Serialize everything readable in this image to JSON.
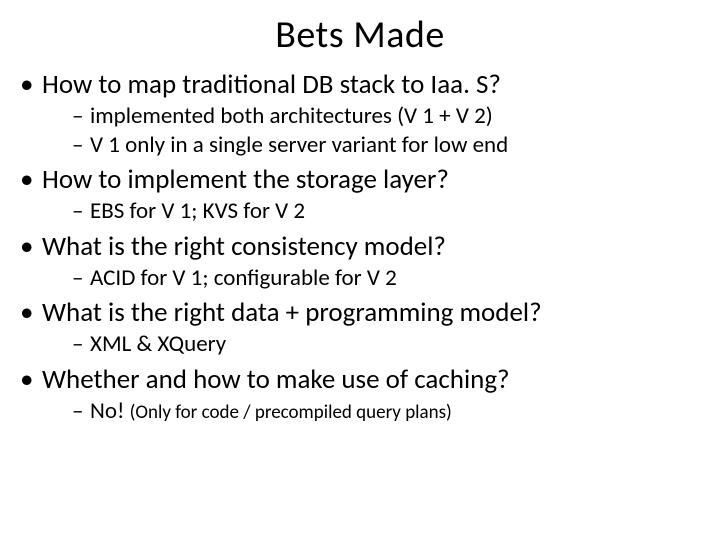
{
  "title": "Bets Made",
  "bullets": [
    {
      "text": "How to map traditional DB stack to Iaa. S?",
      "sub": [
        "implemented both architectures (V 1 + V 2)",
        "V 1 only in a single server variant for low end"
      ]
    },
    {
      "text": "How to implement the storage layer?",
      "sub": [
        "EBS for V 1;  KVS for V 2"
      ]
    },
    {
      "text": "What is the right consistency model?",
      "sub": [
        "ACID for V 1; configurable for V 2"
      ]
    },
    {
      "text": "What is the right data + programming model?",
      "sub": [
        "XML & XQuery"
      ]
    },
    {
      "text": "Whether and how to make use of caching?",
      "sub_special": {
        "lead": "No!  ",
        "small": "(Only for code / precompiled query plans)"
      }
    }
  ],
  "colors": {
    "background": "#ffffff",
    "text": "#000000"
  },
  "fonts": {
    "title_size": 38,
    "level1_size": 27,
    "level2_size": 23,
    "small_inline_size": 19
  }
}
